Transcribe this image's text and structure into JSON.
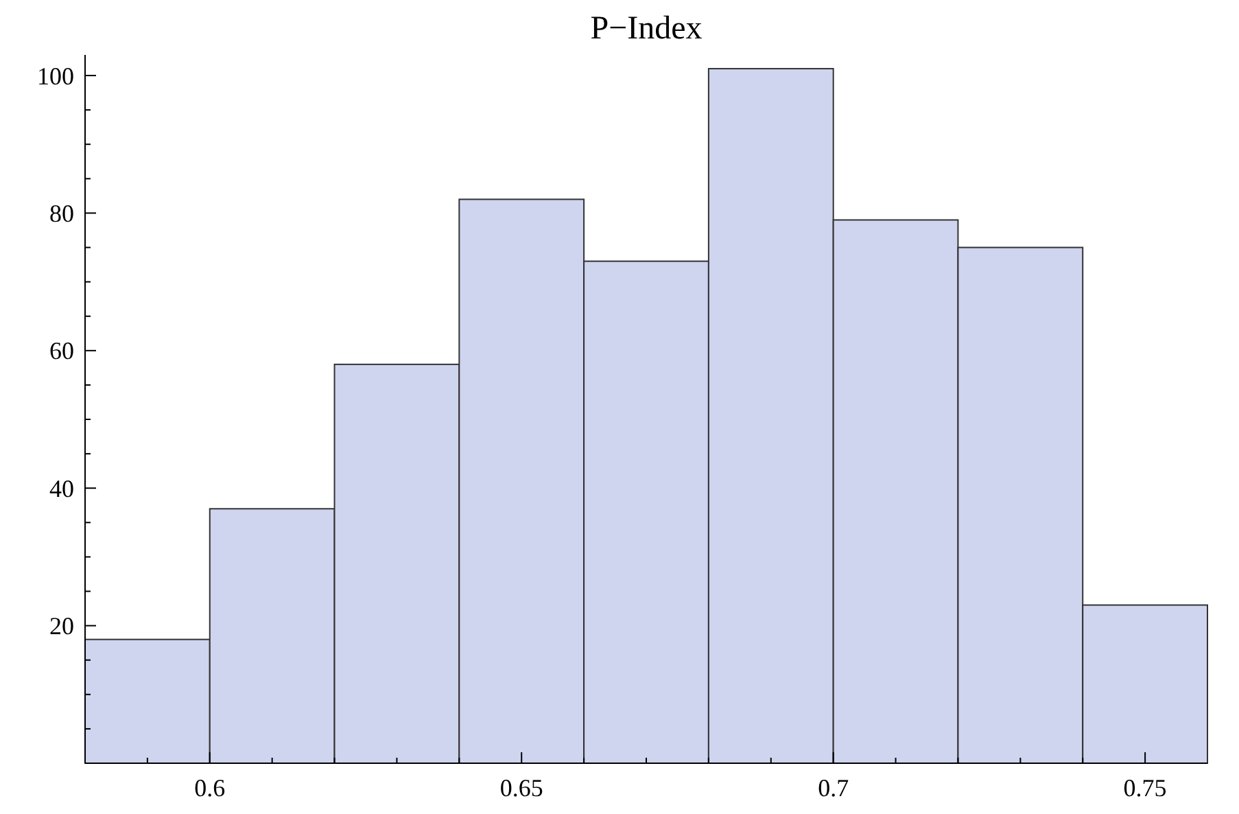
{
  "chart_data": {
    "type": "histogram",
    "title": "P−Index",
    "bins": [
      0.58,
      0.6,
      0.62,
      0.64,
      0.66,
      0.68,
      0.7,
      0.72,
      0.74,
      0.76
    ],
    "values": [
      18,
      37,
      58,
      82,
      73,
      101,
      79,
      75,
      23
    ],
    "color": "#cfd4ef",
    "xlim": [
      0.58,
      0.76
    ],
    "xticks": [
      {
        "value": 0.59,
        "label": null
      },
      0.6,
      {
        "value": 0.61,
        "label": null
      },
      {
        "value": 0.62,
        "label": null
      },
      {
        "value": 0.63,
        "label": null
      },
      {
        "value": 0.64,
        "label": null
      },
      0.65,
      {
        "value": 0.66,
        "label": null
      },
      {
        "value": 0.67,
        "label": null
      },
      {
        "value": 0.68,
        "label": null
      },
      {
        "value": 0.69,
        "label": null
      },
      0.7,
      {
        "value": 0.71,
        "label": null
      },
      {
        "value": 0.72,
        "label": null
      },
      {
        "value": 0.73,
        "label": null
      },
      {
        "value": 0.74,
        "label": null
      },
      0.75
    ],
    "ylim": [
      0,
      103
    ],
    "yticks": [
      {
        "value": 5,
        "label": null
      },
      {
        "value": 10,
        "label": null
      },
      {
        "value": 15,
        "label": null
      },
      20,
      {
        "value": 25,
        "label": null
      },
      {
        "value": 30,
        "label": null
      },
      {
        "value": 35,
        "label": null
      },
      40,
      {
        "value": 45,
        "label": null
      },
      {
        "value": 50,
        "label": null
      },
      {
        "value": 55,
        "label": null
      },
      60,
      {
        "value": 65,
        "label": null
      },
      {
        "value": 70,
        "label": null
      },
      {
        "value": 75,
        "label": null
      },
      80,
      {
        "value": 85,
        "label": null
      },
      {
        "value": 90,
        "label": null
      },
      {
        "value": 95,
        "label": null
      },
      100
    ],
    "grid": false
  }
}
